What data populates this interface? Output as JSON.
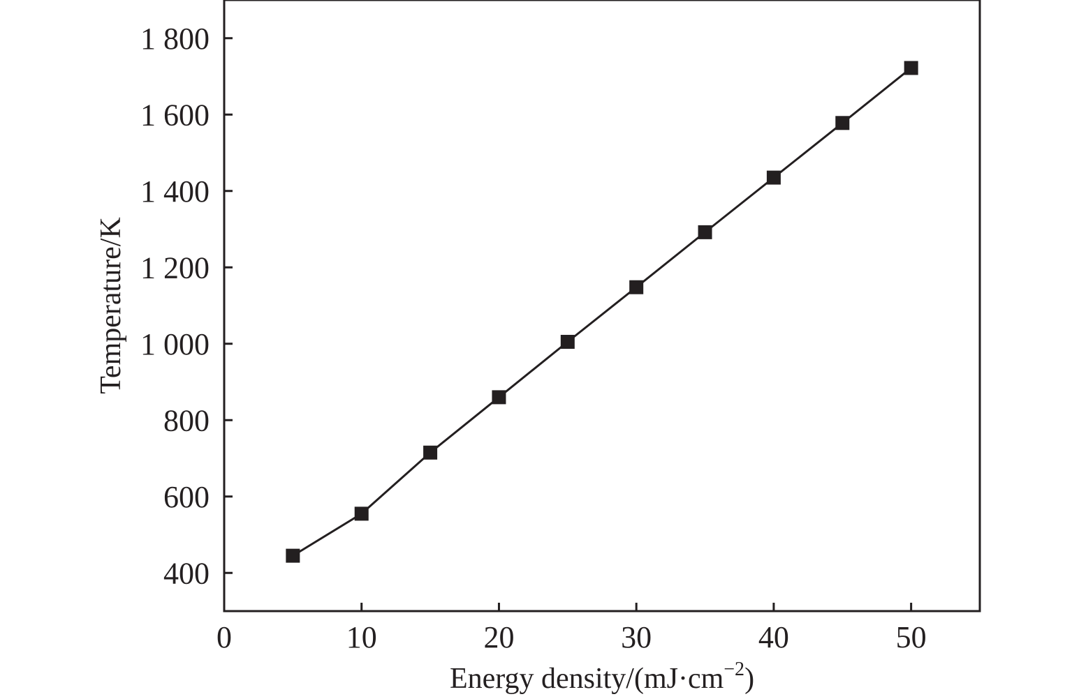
{
  "chart_data": {
    "type": "line",
    "title": "",
    "xlabel": "Energy density/(mJ·cm",
    "xlabel_superscript": "−2",
    "xlabel_suffix": ")",
    "ylabel": "Temperature/K",
    "xlim": [
      0,
      55
    ],
    "ylim": [
      300,
      1900
    ],
    "x_ticks": [
      0,
      10,
      20,
      30,
      40,
      50
    ],
    "x_tick_labels": [
      "0",
      "10",
      "20",
      "30",
      "40",
      "50"
    ],
    "y_ticks": [
      400,
      600,
      800,
      1000,
      1200,
      1400,
      1600,
      1800
    ],
    "y_tick_labels": [
      "400",
      "600",
      "800",
      "1 000",
      "1 200",
      "1 400",
      "1 600",
      "1 800"
    ],
    "grid": false,
    "legend": "none",
    "marker": "square",
    "color": "#231f20",
    "series": [
      {
        "name": "Temperature",
        "x": [
          5,
          10,
          15,
          20,
          25,
          30,
          35,
          40,
          45,
          50
        ],
        "values": [
          445,
          555,
          715,
          860,
          1005,
          1148,
          1292,
          1435,
          1578,
          1722
        ]
      }
    ]
  }
}
